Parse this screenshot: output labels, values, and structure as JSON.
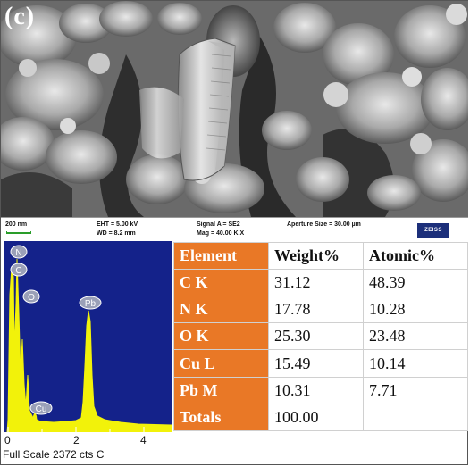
{
  "panel_label": "(c)",
  "sem_info": {
    "scale_text": "200 nm",
    "eht": "EHT = 5.00 kV",
    "wd": "WD = 8.2 mm",
    "signal": "Signal A = SE2",
    "mag": "Mag = 40.00 K X",
    "aperture": "Aperture Size = 30.00 µm",
    "logo": "ZEISS"
  },
  "spectrum": {
    "plot_bg": "#14228a",
    "trace_color": "#f2f20a",
    "x_ticks": [
      "0",
      "2",
      "4"
    ],
    "footer": "Full Scale 2372 cts C",
    "peak_labels": [
      "N",
      "C",
      "O",
      "Pb",
      "Cu"
    ]
  },
  "table": {
    "headers": [
      "Element",
      "Weight%",
      "Atomic%"
    ],
    "rows": [
      {
        "element": "C K",
        "weight": "31.12",
        "atomic": "48.39"
      },
      {
        "element": "N K",
        "weight": "17.78",
        "atomic": "10.28"
      },
      {
        "element": "O K",
        "weight": "25.30",
        "atomic": "23.48"
      },
      {
        "element": "Cu L",
        "weight": "15.49",
        "atomic": "10.14"
      },
      {
        "element": "Pb M",
        "weight": "10.31",
        "atomic": "7.71"
      },
      {
        "element": "Totals",
        "weight": "100.00",
        "atomic": ""
      }
    ],
    "element_col_color": "#e97826"
  }
}
